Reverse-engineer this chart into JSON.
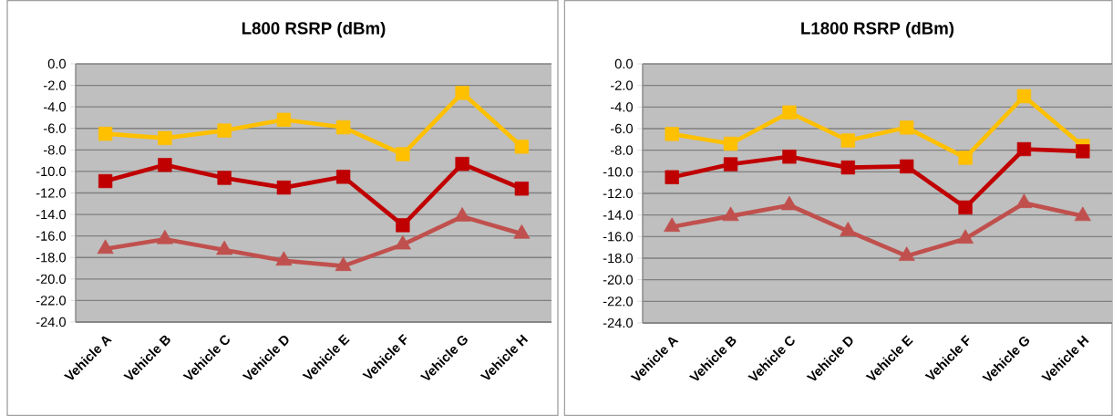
{
  "chart_data": [
    {
      "type": "line",
      "title": "L800 RSRP (dBm)",
      "categories": [
        "Vehicle A",
        "Vehicle B",
        "Vehicle C",
        "Vehicle D",
        "Vehicle E",
        "Vehicle F",
        "Vehicle G",
        "Vehicle H"
      ],
      "series": [
        {
          "color": "#ffc000",
          "marker": "square",
          "values": [
            -6.5,
            -6.9,
            -6.2,
            -5.2,
            -5.9,
            -8.4,
            -2.7,
            -7.7
          ]
        },
        {
          "color": "#c00000",
          "marker": "square",
          "values": [
            -10.9,
            -9.4,
            -10.6,
            -11.5,
            -10.5,
            -15.0,
            -9.3,
            -11.6
          ]
        },
        {
          "color": "#c0504d",
          "marker": "triangle",
          "values": [
            -17.2,
            -16.3,
            -17.3,
            -18.3,
            -18.8,
            -16.8,
            -14.2,
            -15.8
          ]
        }
      ],
      "ylim": [
        -24,
        0
      ],
      "yticks": [
        {
          "value": 0,
          "label": "0.0"
        },
        {
          "value": -2,
          "label": "-2.0"
        },
        {
          "value": -4,
          "label": "-4.0"
        },
        {
          "value": -6,
          "label": "-6.0"
        },
        {
          "value": -8,
          "label": "-8.0"
        },
        {
          "value": -10,
          "label": "-10.0"
        },
        {
          "value": -12,
          "label": "-12.0"
        },
        {
          "value": -14,
          "label": "-14.0"
        },
        {
          "value": -16,
          "label": "-16.0"
        },
        {
          "value": -18,
          "label": "-18.0"
        },
        {
          "value": -20,
          "label": "-20.0"
        },
        {
          "value": -22,
          "label": "-22.0"
        },
        {
          "value": -24,
          "label": "-24.0"
        }
      ],
      "grid": "y"
    },
    {
      "type": "line",
      "title": "L1800 RSRP (dBm)",
      "categories": [
        "Vehicle A",
        "Vehicle B",
        "Vehicle C",
        "Vehicle D",
        "Vehicle E",
        "Vehicle F",
        "Vehicle G",
        "Vehicle H"
      ],
      "series": [
        {
          "color": "#ffc000",
          "marker": "square",
          "values": [
            -6.5,
            -7.4,
            -4.5,
            -7.1,
            -5.9,
            -8.7,
            -3.0,
            -7.6
          ]
        },
        {
          "color": "#c00000",
          "marker": "square",
          "values": [
            -10.5,
            -9.3,
            -8.6,
            -9.6,
            -9.5,
            -13.3,
            -7.9,
            -8.1
          ]
        },
        {
          "color": "#c0504d",
          "marker": "triangle",
          "values": [
            -15.1,
            -14.1,
            -13.1,
            -15.5,
            -17.8,
            -16.2,
            -12.9,
            -14.1
          ]
        }
      ],
      "ylim": [
        -24,
        0
      ],
      "yticks": [
        {
          "value": 0,
          "label": "0.0"
        },
        {
          "value": -2,
          "label": "-2.0"
        },
        {
          "value": -4,
          "label": "-4.0"
        },
        {
          "value": -6,
          "label": "-6.0"
        },
        {
          "value": -8,
          "label": "-8.0"
        },
        {
          "value": -10,
          "label": "-10.0"
        },
        {
          "value": -12,
          "label": "-12.0"
        },
        {
          "value": -14,
          "label": "-14.0"
        },
        {
          "value": -16,
          "label": "-16.0"
        },
        {
          "value": -18,
          "label": "-18.0"
        },
        {
          "value": -20,
          "label": "-20.0"
        },
        {
          "value": -22,
          "label": "-22.0"
        },
        {
          "value": -24,
          "label": "-24.0"
        }
      ],
      "grid": "y"
    }
  ]
}
